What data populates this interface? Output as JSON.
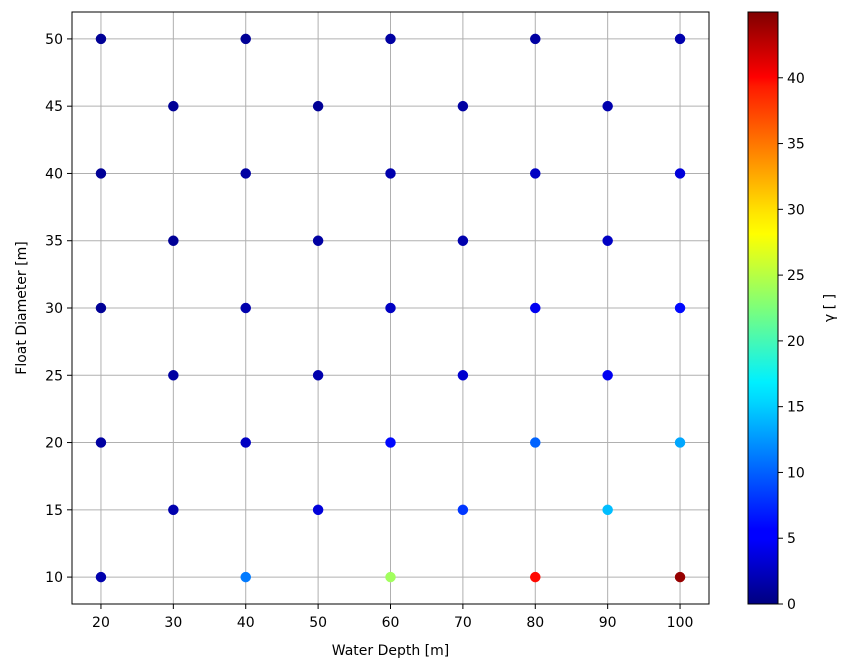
{
  "chart_data": {
    "type": "scatter",
    "xlabel": "Water Depth [m]",
    "ylabel": "Float Diameter [m]",
    "colorbar_label": "γ [ ]",
    "xlim": [
      16,
      104
    ],
    "ylim": [
      8,
      52
    ],
    "x_ticks": [
      "20",
      "30",
      "40",
      "50",
      "60",
      "70",
      "80",
      "90",
      "100"
    ],
    "y_ticks": [
      "10",
      "15",
      "20",
      "25",
      "30",
      "35",
      "40",
      "45",
      "50"
    ],
    "colorbar_ticks": [
      "0",
      "5",
      "10",
      "15",
      "20",
      "25",
      "30",
      "35",
      "40"
    ],
    "colorbar_range": [
      0,
      45
    ],
    "colormap": "jet",
    "grid": true,
    "points": [
      {
        "x": 20,
        "y": 50,
        "c": 1
      },
      {
        "x": 40,
        "y": 50,
        "c": 1
      },
      {
        "x": 60,
        "y": 50,
        "c": 1.5
      },
      {
        "x": 80,
        "y": 50,
        "c": 1.5
      },
      {
        "x": 100,
        "y": 50,
        "c": 2
      },
      {
        "x": 30,
        "y": 45,
        "c": 1
      },
      {
        "x": 50,
        "y": 45,
        "c": 1
      },
      {
        "x": 70,
        "y": 45,
        "c": 1.5
      },
      {
        "x": 90,
        "y": 45,
        "c": 2
      },
      {
        "x": 20,
        "y": 40,
        "c": 1
      },
      {
        "x": 40,
        "y": 40,
        "c": 1.5
      },
      {
        "x": 60,
        "y": 40,
        "c": 2
      },
      {
        "x": 80,
        "y": 40,
        "c": 3
      },
      {
        "x": 100,
        "y": 40,
        "c": 4
      },
      {
        "x": 30,
        "y": 35,
        "c": 1
      },
      {
        "x": 50,
        "y": 35,
        "c": 1.5
      },
      {
        "x": 70,
        "y": 35,
        "c": 2
      },
      {
        "x": 90,
        "y": 35,
        "c": 3
      },
      {
        "x": 20,
        "y": 30,
        "c": 1
      },
      {
        "x": 40,
        "y": 30,
        "c": 2
      },
      {
        "x": 60,
        "y": 30,
        "c": 3
      },
      {
        "x": 80,
        "y": 30,
        "c": 5
      },
      {
        "x": 100,
        "y": 30,
        "c": 6
      },
      {
        "x": 30,
        "y": 25,
        "c": 1.5
      },
      {
        "x": 50,
        "y": 25,
        "c": 2
      },
      {
        "x": 70,
        "y": 25,
        "c": 3.5
      },
      {
        "x": 90,
        "y": 25,
        "c": 5
      },
      {
        "x": 20,
        "y": 20,
        "c": 1.5
      },
      {
        "x": 40,
        "y": 20,
        "c": 3
      },
      {
        "x": 60,
        "y": 20,
        "c": 6
      },
      {
        "x": 80,
        "y": 20,
        "c": 10
      },
      {
        "x": 100,
        "y": 20,
        "c": 13
      },
      {
        "x": 30,
        "y": 15,
        "c": 2
      },
      {
        "x": 50,
        "y": 15,
        "c": 4
      },
      {
        "x": 70,
        "y": 15,
        "c": 8
      },
      {
        "x": 90,
        "y": 15,
        "c": 14
      },
      {
        "x": 20,
        "y": 10,
        "c": 2
      },
      {
        "x": 40,
        "y": 10,
        "c": 11
      },
      {
        "x": 60,
        "y": 10,
        "c": 24
      },
      {
        "x": 80,
        "y": 10,
        "c": 39
      },
      {
        "x": 100,
        "y": 10,
        "c": 44
      }
    ]
  }
}
